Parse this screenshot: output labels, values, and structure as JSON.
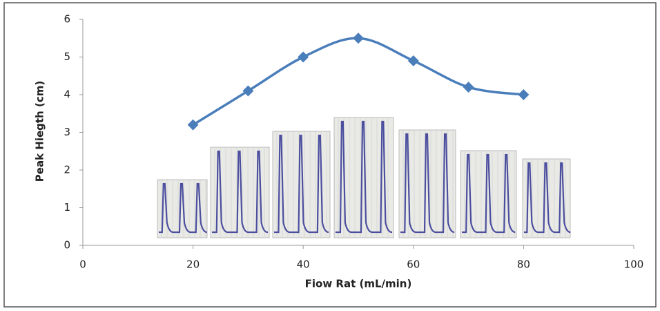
{
  "chart_data": {
    "type": "line",
    "smooth": true,
    "marker": "diamond",
    "x_label": "Fiow Rat (mL/min)",
    "y_label": "Peak Hiegth (cm)",
    "x": [
      20,
      30,
      40,
      50,
      60,
      70,
      80
    ],
    "values": [
      3.2,
      4.1,
      5.0,
      5.5,
      4.9,
      4.2,
      4.0
    ],
    "color": "#4a7ebb",
    "xlim": [
      0,
      100
    ],
    "xticks": [
      0,
      20,
      40,
      60,
      80,
      100
    ],
    "ylim": [
      0,
      6
    ],
    "yticks": [
      0,
      1,
      2,
      3,
      4,
      5,
      6
    ],
    "grid": false
  }
}
